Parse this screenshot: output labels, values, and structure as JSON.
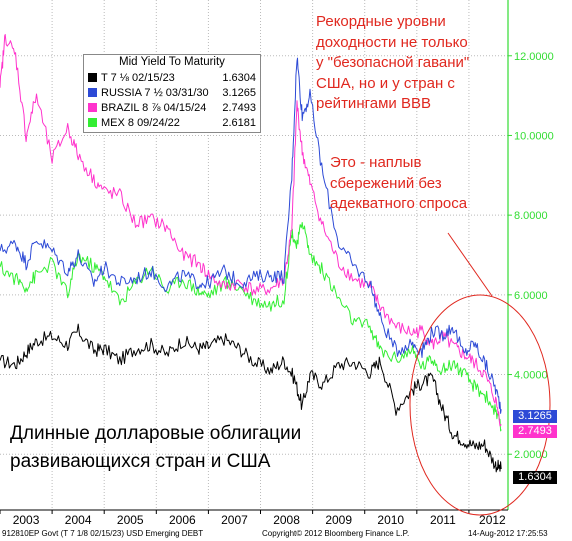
{
  "chart_data": {
    "type": "line",
    "title": "",
    "xlabel": "",
    "ylabel": "",
    "x_ticks": [
      "2003",
      "2004",
      "2005",
      "2006",
      "2007",
      "2008",
      "2009",
      "2010",
      "2011",
      "2012"
    ],
    "y_ticks": [
      "2.0000",
      "4.0000",
      "6.0000",
      "8.0000",
      "10.0000",
      "12.0000"
    ],
    "ylim": [
      0.6,
      13.4
    ],
    "xlim": [
      2003.0,
      2012.75
    ],
    "grid": true,
    "legend_position": "top-left",
    "legend_title": "Mid Yield To Maturity",
    "series": [
      {
        "name": "T 7 ⅛ 02/15/23",
        "color": "#000000",
        "last_value": "1.6304",
        "x": [
          2003.0,
          2003.3,
          2003.5,
          2003.7,
          2004.0,
          2004.3,
          2004.5,
          2004.8,
          2005.0,
          2005.3,
          2005.6,
          2005.9,
          2006.2,
          2006.5,
          2006.8,
          2007.0,
          2007.3,
          2007.6,
          2007.9,
          2008.2,
          2008.45,
          2008.65,
          2008.8,
          2008.95,
          2009.2,
          2009.5,
          2009.8,
          2010.1,
          2010.3,
          2010.6,
          2010.9,
          2011.1,
          2011.3,
          2011.5,
          2011.7,
          2011.9,
          2012.1,
          2012.3,
          2012.5,
          2012.62
        ],
        "y": [
          4.35,
          4.25,
          4.55,
          4.85,
          4.95,
          4.75,
          5.1,
          4.6,
          4.65,
          4.35,
          4.65,
          4.75,
          4.5,
          4.85,
          4.65,
          4.7,
          4.9,
          4.65,
          4.3,
          4.1,
          4.35,
          3.9,
          3.2,
          4.0,
          3.75,
          4.25,
          4.3,
          4.05,
          4.35,
          3.15,
          3.6,
          3.8,
          3.9,
          3.1,
          2.5,
          2.35,
          2.2,
          2.25,
          1.75,
          1.63
        ]
      },
      {
        "name": "RUSSIA 7 ½ 03/31/30",
        "color": "#2d4ad6",
        "last_value": "3.1265",
        "x": [
          2003.0,
          2003.3,
          2003.5,
          2003.7,
          2004.0,
          2004.3,
          2004.5,
          2004.8,
          2005.0,
          2005.3,
          2005.6,
          2005.9,
          2006.2,
          2006.5,
          2006.8,
          2007.0,
          2007.3,
          2007.6,
          2007.9,
          2008.2,
          2008.45,
          2008.6,
          2008.7,
          2008.8,
          2008.95,
          2009.2,
          2009.5,
          2009.8,
          2010.1,
          2010.3,
          2010.6,
          2010.9,
          2011.1,
          2011.3,
          2011.5,
          2011.7,
          2011.9,
          2012.1,
          2012.3,
          2012.5,
          2012.62
        ],
        "y": [
          7.1,
          7.3,
          6.8,
          7.4,
          7.1,
          6.6,
          7.0,
          6.3,
          6.7,
          6.3,
          6.4,
          6.6,
          6.2,
          6.5,
          6.3,
          6.3,
          6.6,
          6.3,
          6.45,
          6.5,
          6.45,
          9.0,
          12.0,
          10.5,
          11.0,
          9.0,
          7.3,
          6.7,
          6.3,
          5.4,
          4.6,
          4.8,
          4.6,
          5.1,
          5.0,
          5.2,
          4.5,
          4.8,
          4.3,
          3.7,
          3.13
        ]
      },
      {
        "name": "BRAZIL 8 ⅞ 04/15/24",
        "color": "#ff33cc",
        "last_value": "2.7493",
        "x": [
          2003.0,
          2003.1,
          2003.3,
          2003.5,
          2003.7,
          2004.0,
          2004.3,
          2004.5,
          2004.8,
          2005.0,
          2005.3,
          2005.6,
          2005.9,
          2006.2,
          2006.5,
          2006.8,
          2007.0,
          2007.3,
          2007.6,
          2007.9,
          2008.2,
          2008.45,
          2008.6,
          2008.7,
          2008.8,
          2008.95,
          2009.2,
          2009.5,
          2009.8,
          2010.1,
          2010.3,
          2010.6,
          2010.9,
          2011.1,
          2011.3,
          2011.5,
          2011.7,
          2011.9,
          2012.1,
          2012.3,
          2012.5,
          2012.62
        ],
        "y": [
          11.2,
          12.5,
          12.0,
          10.0,
          11.0,
          9.4,
          10.2,
          9.5,
          8.9,
          8.6,
          8.5,
          7.8,
          7.9,
          7.7,
          7.0,
          6.8,
          6.5,
          6.2,
          6.3,
          6.1,
          6.15,
          6.4,
          7.6,
          10.8,
          9.6,
          8.8,
          7.7,
          6.8,
          6.4,
          6.2,
          5.7,
          5.2,
          5.05,
          5.1,
          4.75,
          4.95,
          4.7,
          4.5,
          4.3,
          4.0,
          3.4,
          2.75
        ]
      },
      {
        "name": "MEX 8 09/24/22",
        "color": "#33ee33",
        "last_value": "2.6181",
        "x": [
          2003.0,
          2003.3,
          2003.5,
          2003.7,
          2004.0,
          2004.3,
          2004.5,
          2004.8,
          2005.0,
          2005.3,
          2005.6,
          2005.9,
          2006.2,
          2006.5,
          2006.8,
          2007.0,
          2007.3,
          2007.6,
          2007.9,
          2008.2,
          2008.45,
          2008.6,
          2008.7,
          2008.8,
          2008.95,
          2009.2,
          2009.5,
          2009.8,
          2010.1,
          2010.3,
          2010.6,
          2010.9,
          2011.1,
          2011.3,
          2011.5,
          2011.7,
          2011.9,
          2012.1,
          2012.3,
          2012.5,
          2012.62
        ],
        "y": [
          6.7,
          6.4,
          6.2,
          6.5,
          6.8,
          6.0,
          7.0,
          6.7,
          6.5,
          5.8,
          6.3,
          6.7,
          6.1,
          6.4,
          6.1,
          6.0,
          6.3,
          6.2,
          5.85,
          5.75,
          5.9,
          7.6,
          7.2,
          7.9,
          7.0,
          6.6,
          5.9,
          5.3,
          5.2,
          4.6,
          4.4,
          4.6,
          4.2,
          4.4,
          4.1,
          4.3,
          4.0,
          3.7,
          3.5,
          3.1,
          2.62
        ]
      }
    ]
  },
  "legend": {
    "title": "Mid Yield To Maturity",
    "items": [
      {
        "label": "T 7 ⅛ 02/15/23",
        "value": "1.6304",
        "color": "#000000"
      },
      {
        "label": "RUSSIA 7 ½ 03/31/30",
        "value": "3.1265",
        "color": "#2d4ad6"
      },
      {
        "label": "BRAZIL 8 ⅞ 04/15/24",
        "value": "2.7493",
        "color": "#ff33cc"
      },
      {
        "label": "MEX 8 09/24/22",
        "value": "2.6181",
        "color": "#33ee33"
      }
    ]
  },
  "value_boxes": [
    {
      "value": "3.1265",
      "color": "#2d4ad6"
    },
    {
      "value": "2.7493",
      "color": "#ff33cc"
    },
    {
      "value": "1.6304",
      "color": "#000000"
    }
  ],
  "annotations": {
    "top": [
      "Рекордные уровни",
      "доходности не только",
      "у \"безопасной гавани\"",
      "США, но и у стран с",
      "рейтингами ВВВ"
    ],
    "middle": [
      "Это - наплыв",
      "сбережений без",
      "адекватного спроса"
    ],
    "caption": [
      "Длинные долларовые облигации",
      "развивающихся стран и США"
    ]
  },
  "footer": {
    "left": "912810EP Govt (T 7 1/8 02/15/23) USD Emerging DEBT",
    "center": "Copyright© 2012 Bloomberg Finance L.P.",
    "right": "14-Aug-2012 17:25:53"
  },
  "colors": {
    "annotation": "#e0281f",
    "axis_green": "#33dd33",
    "grid": "#bbbbbb"
  }
}
